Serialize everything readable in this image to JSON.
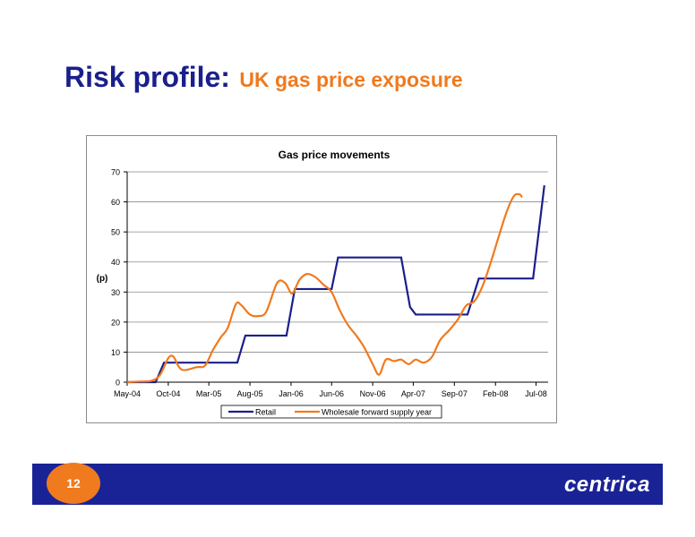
{
  "slide": {
    "title": "Risk profile:",
    "subtitle": "UK gas price exposure",
    "page_number": "12",
    "logo": "centrica"
  },
  "colors": {
    "title": "#1a1f8c",
    "subtitle": "#f07a1e",
    "footer": "#1a2396",
    "retail": "#1a1f8c",
    "wholesale": "#f07a1e"
  },
  "chart_data": {
    "type": "line",
    "title": "Gas price movements",
    "ylabel": "(p)",
    "xlabel": "",
    "ylim": [
      0,
      70
    ],
    "yticks": [
      0,
      10,
      20,
      30,
      40,
      50,
      60,
      70
    ],
    "xlim": [
      "2004-05-01",
      "2008-08-15"
    ],
    "xticks": [
      "2004-05-01",
      "2004-10-01",
      "2005-03-01",
      "2005-08-01",
      "2006-01-01",
      "2006-06-01",
      "2006-11-01",
      "2007-04-01",
      "2007-09-01",
      "2008-02-01",
      "2008-07-01"
    ],
    "xtick_labels": [
      "May-04",
      "Oct-04",
      "Mar-05",
      "Aug-05",
      "Jan-06",
      "Jun-06",
      "Nov-06",
      "Apr-07",
      "Sep-07",
      "Feb-08",
      "Jul-08"
    ],
    "grid": "horizontal",
    "legend": "bottom",
    "series": [
      {
        "name": "Retail",
        "color": "#1a1f8c",
        "shape": "linear",
        "points": [
          [
            "2004-05-01",
            0
          ],
          [
            "2004-08-15",
            0
          ],
          [
            "2004-09-15",
            6.5
          ],
          [
            "2005-06-15",
            6.5
          ],
          [
            "2005-07-15",
            15.5
          ],
          [
            "2005-12-15",
            15.5
          ],
          [
            "2006-01-15",
            31
          ],
          [
            "2006-06-01",
            31
          ],
          [
            "2006-06-25",
            41.5
          ],
          [
            "2007-02-15",
            41.5
          ],
          [
            "2007-03-20",
            25
          ],
          [
            "2007-04-10",
            22.5
          ],
          [
            "2007-10-20",
            22.5
          ],
          [
            "2007-12-01",
            34.5
          ],
          [
            "2008-06-20",
            34.5
          ],
          [
            "2008-08-01",
            65.5
          ]
        ]
      },
      {
        "name": "Wholesale forward supply year",
        "color": "#f07a1e",
        "shape": "smooth",
        "points": [
          [
            "2004-05-01",
            0
          ],
          [
            "2004-06-15",
            0.2
          ],
          [
            "2004-08-01",
            0.5
          ],
          [
            "2004-09-01",
            2.5
          ],
          [
            "2004-10-01",
            8
          ],
          [
            "2004-10-20",
            8.5
          ],
          [
            "2004-11-10",
            5
          ],
          [
            "2004-12-01",
            4
          ],
          [
            "2005-01-15",
            5
          ],
          [
            "2005-02-15",
            5.5
          ],
          [
            "2005-03-15",
            10.5
          ],
          [
            "2005-04-15",
            15
          ],
          [
            "2005-05-10",
            18
          ],
          [
            "2005-06-10",
            26
          ],
          [
            "2005-07-01",
            25.5
          ],
          [
            "2005-08-01",
            22.5
          ],
          [
            "2005-09-01",
            22
          ],
          [
            "2005-10-01",
            23.5
          ],
          [
            "2005-11-10",
            33
          ],
          [
            "2005-12-10",
            33
          ],
          [
            "2006-01-05",
            29.5
          ],
          [
            "2006-02-01",
            34
          ],
          [
            "2006-03-01",
            36
          ],
          [
            "2006-04-01",
            35
          ],
          [
            "2006-05-01",
            32.5
          ],
          [
            "2006-06-01",
            30
          ],
          [
            "2006-07-01",
            24
          ],
          [
            "2006-08-01",
            19
          ],
          [
            "2006-09-01",
            15.5
          ],
          [
            "2006-10-01",
            11.5
          ],
          [
            "2006-11-01",
            6
          ],
          [
            "2006-11-25",
            2.5
          ],
          [
            "2006-12-20",
            7.5
          ],
          [
            "2007-01-20",
            7
          ],
          [
            "2007-02-15",
            7.5
          ],
          [
            "2007-03-15",
            6
          ],
          [
            "2007-04-10",
            7.5
          ],
          [
            "2007-05-10",
            6.5
          ],
          [
            "2007-06-10",
            8.5
          ],
          [
            "2007-07-10",
            14
          ],
          [
            "2007-08-15",
            17.5
          ],
          [
            "2007-09-15",
            21
          ],
          [
            "2007-10-15",
            25.5
          ],
          [
            "2007-11-15",
            27
          ],
          [
            "2007-12-15",
            32
          ],
          [
            "2008-01-15",
            40
          ],
          [
            "2008-02-15",
            49
          ],
          [
            "2008-03-15",
            57
          ],
          [
            "2008-04-10",
            62
          ],
          [
            "2008-05-01",
            62.5
          ],
          [
            "2008-05-10",
            61.5
          ]
        ]
      }
    ]
  }
}
